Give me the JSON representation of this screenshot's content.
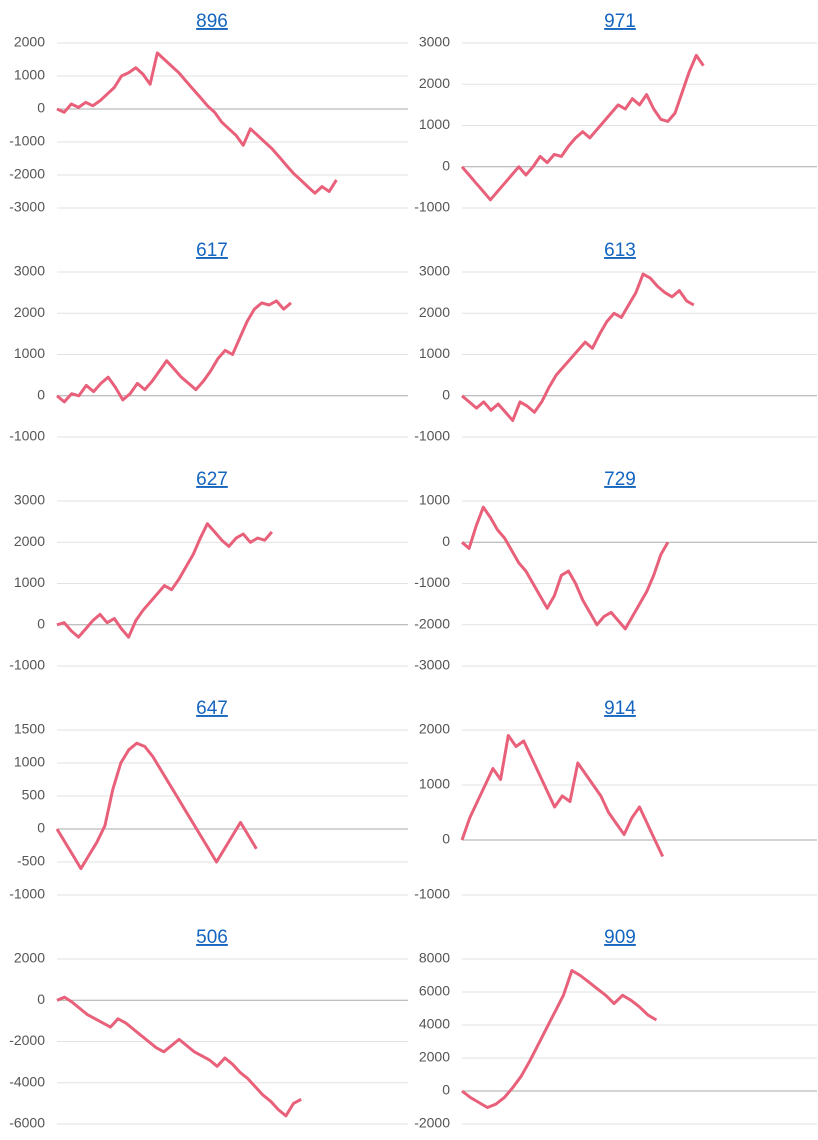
{
  "chart_data": [
    {
      "type": "line",
      "title": "896",
      "color": "#e8607a",
      "grid": true,
      "xlim": [
        0,
        49
      ],
      "ylim": [
        -3000,
        2000
      ],
      "yticks": [
        2000,
        1000,
        0,
        -1000,
        -2000,
        -3000
      ],
      "values": [
        0,
        -100,
        150,
        50,
        200,
        100,
        250,
        450,
        650,
        1000,
        1100,
        1250,
        1050,
        750,
        1700,
        1500,
        1300,
        1100,
        850,
        600,
        350,
        100,
        -100,
        -400,
        -600,
        -800,
        -1100,
        -600,
        -800,
        -1000,
        -1200,
        -1450,
        -1700,
        -1950,
        -2150,
        -2350,
        -2550,
        -2350,
        -2500,
        -2150
      ]
    },
    {
      "type": "line",
      "title": "971",
      "color": "#e8607a",
      "grid": true,
      "xlim": [
        0,
        50
      ],
      "ylim": [
        -1000,
        3000
      ],
      "yticks": [
        3000,
        2000,
        1000,
        0,
        -1000
      ],
      "values": [
        0,
        -200,
        -400,
        -600,
        -800,
        -600,
        -400,
        -200,
        0,
        -200,
        0,
        250,
        100,
        300,
        250,
        500,
        700,
        850,
        700,
        900,
        1100,
        1300,
        1500,
        1400,
        1650,
        1500,
        1750,
        1400,
        1150,
        1100,
        1300,
        1800,
        2300,
        2700,
        2450
      ]
    },
    {
      "type": "line",
      "title": "617",
      "color": "#e8607a",
      "grid": true,
      "xlim": [
        0,
        48
      ],
      "ylim": [
        -1000,
        3000
      ],
      "yticks": [
        3000,
        2000,
        1000,
        0,
        -1000
      ],
      "values": [
        0,
        -150,
        50,
        0,
        250,
        100,
        300,
        450,
        200,
        -100,
        50,
        300,
        150,
        350,
        600,
        850,
        650,
        450,
        300,
        150,
        350,
        600,
        900,
        1100,
        1000,
        1400,
        1800,
        2100,
        2250,
        2200,
        2300,
        2100,
        2250
      ]
    },
    {
      "type": "line",
      "title": "613",
      "color": "#e8607a",
      "grid": true,
      "xlim": [
        0,
        49
      ],
      "ylim": [
        -1000,
        3000
      ],
      "yticks": [
        3000,
        2000,
        1000,
        0,
        -1000
      ],
      "values": [
        0,
        -150,
        -300,
        -150,
        -350,
        -200,
        -400,
        -600,
        -150,
        -250,
        -400,
        -150,
        200,
        500,
        700,
        900,
        1100,
        1300,
        1150,
        1500,
        1800,
        2000,
        1900,
        2200,
        2500,
        2950,
        2850,
        2650,
        2500,
        2400,
        2550,
        2300,
        2200
      ]
    },
    {
      "type": "line",
      "title": "627",
      "color": "#e8607a",
      "grid": true,
      "xlim": [
        0,
        49
      ],
      "ylim": [
        -1000,
        3000
      ],
      "yticks": [
        3000,
        2000,
        1000,
        0,
        -1000
      ],
      "values": [
        0,
        50,
        -150,
        -300,
        -100,
        100,
        250,
        50,
        150,
        -100,
        -300,
        100,
        350,
        550,
        750,
        950,
        850,
        1100,
        1400,
        1700,
        2100,
        2450,
        2250,
        2050,
        1900,
        2100,
        2200,
        2000,
        2100,
        2050,
        2250
      ]
    },
    {
      "type": "line",
      "title": "729",
      "color": "#e8607a",
      "grid": true,
      "xlim": [
        0,
        50
      ],
      "ylim": [
        -3000,
        1000
      ],
      "yticks": [
        1000,
        0,
        -1000,
        -2000,
        -3000
      ],
      "values": [
        0,
        -150,
        400,
        850,
        600,
        300,
        100,
        -200,
        -500,
        -700,
        -1000,
        -1300,
        -1600,
        -1300,
        -800,
        -700,
        -1000,
        -1400,
        -1700,
        -2000,
        -1800,
        -1700,
        -1900,
        -2100,
        -1800,
        -1500,
        -1200,
        -800,
        -300,
        0
      ]
    },
    {
      "type": "line",
      "title": "647",
      "color": "#e8607a",
      "grid": true,
      "xlim": [
        0,
        44
      ],
      "ylim": [
        -1000,
        1500
      ],
      "yticks": [
        1500,
        1000,
        500,
        0,
        -500,
        -1000
      ],
      "values": [
        0,
        -200,
        -400,
        -600,
        -400,
        -200,
        50,
        600,
        1000,
        1200,
        1300,
        1250,
        1100,
        900,
        700,
        500,
        300,
        100,
        -100,
        -300,
        -500,
        -300,
        -100,
        100,
        -100,
        -300
      ]
    },
    {
      "type": "line",
      "title": "914",
      "color": "#e8607a",
      "grid": true,
      "xlim": [
        0,
        46
      ],
      "ylim": [
        -1000,
        2000
      ],
      "yticks": [
        2000,
        1000,
        0,
        -1000
      ],
      "values": [
        0,
        400,
        700,
        1000,
        1300,
        1100,
        1900,
        1700,
        1800,
        1500,
        1200,
        900,
        600,
        800,
        700,
        1400,
        1200,
        1000,
        800,
        500,
        300,
        100,
        400,
        600,
        300,
        0,
        -300
      ]
    },
    {
      "type": "line",
      "title": "506",
      "color": "#e8607a",
      "grid": true,
      "xlim": [
        0,
        46
      ],
      "ylim": [
        -6000,
        2000
      ],
      "yticks": [
        2000,
        0,
        -2000,
        -4000,
        -6000
      ],
      "values": [
        0,
        150,
        -100,
        -400,
        -700,
        -900,
        -1100,
        -1300,
        -900,
        -1100,
        -1400,
        -1700,
        -2000,
        -2300,
        -2500,
        -2200,
        -1900,
        -2200,
        -2500,
        -2700,
        -2900,
        -3200,
        -2800,
        -3100,
        -3500,
        -3800,
        -4200,
        -4600,
        -4900,
        -5300,
        -5600,
        -5000,
        -4800
      ]
    },
    {
      "type": "line",
      "title": "909",
      "color": "#e8607a",
      "grid": true,
      "xlim": [
        0,
        42
      ],
      "ylim": [
        -2000,
        8000
      ],
      "yticks": [
        8000,
        6000,
        4000,
        2000,
        0,
        -2000
      ],
      "values": [
        0,
        -400,
        -700,
        -1000,
        -800,
        -400,
        200,
        900,
        1800,
        2800,
        3800,
        4800,
        5800,
        7300,
        7000,
        6600,
        6200,
        5800,
        5300,
        5800,
        5500,
        5100,
        4600,
        4300
      ]
    }
  ]
}
